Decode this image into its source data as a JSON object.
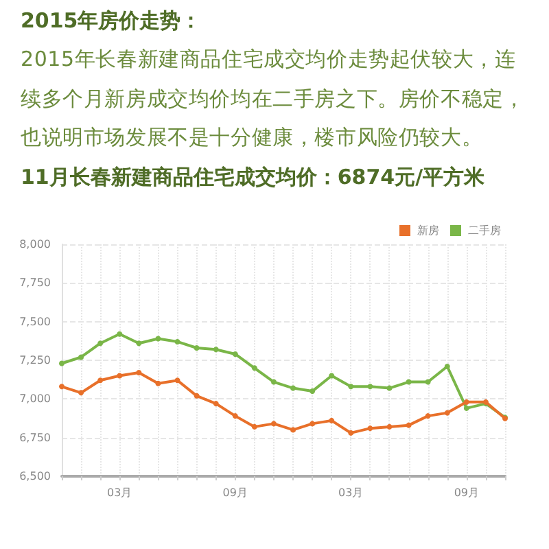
{
  "chart_data": {
    "type": "line",
    "title": "2015年房价走势：",
    "subtitle": "2015年长春新建商品住宅成交均价走势起伏较大，连续多个月新房成交均价均在二手房之下。房价不稳定，也说明市场发展不是十分健康，楼市风险仍较大。",
    "annotations": [
      "11月长春新建商品住宅成交均价：6874元/平方米"
    ],
    "categories": [
      null,
      null,
      null,
      "03月",
      null,
      null,
      null,
      null,
      null,
      "09月",
      null,
      null,
      null,
      null,
      null,
      "03月",
      null,
      null,
      null,
      null,
      null,
      "09月",
      null,
      null
    ],
    "series": [
      {
        "name": "新房",
        "color": "#e8702a",
        "values": [
          7080,
          7040,
          7120,
          7150,
          7170,
          7100,
          7120,
          7020,
          6970,
          6890,
          6820,
          6840,
          6800,
          6840,
          6860,
          6780,
          6810,
          6820,
          6830,
          6890,
          6910,
          6980,
          6980,
          6874
        ]
      },
      {
        "name": "二手房",
        "color": "#7ab648",
        "values": [
          7230,
          7270,
          7360,
          7420,
          7360,
          7390,
          7370,
          7330,
          7320,
          7290,
          7200,
          7110,
          7070,
          7050,
          7150,
          7080,
          7080,
          7070,
          7110,
          7110,
          7210,
          6940,
          6970,
          6880
        ]
      }
    ],
    "ylim": [
      6500,
      8000
    ],
    "yticks": [
      {
        "value": 6500,
        "label": "6,500"
      },
      {
        "value": 6750,
        "label": "6,750"
      },
      {
        "value": 7000,
        "label": "7,000"
      },
      {
        "value": 7250,
        "label": "7,250"
      },
      {
        "value": 7500,
        "label": "7,500"
      },
      {
        "value": 7750,
        "label": "7,750"
      },
      {
        "value": 8000,
        "label": "8,000"
      }
    ],
    "grid": true,
    "legend": "top right",
    "marker": "circle"
  }
}
